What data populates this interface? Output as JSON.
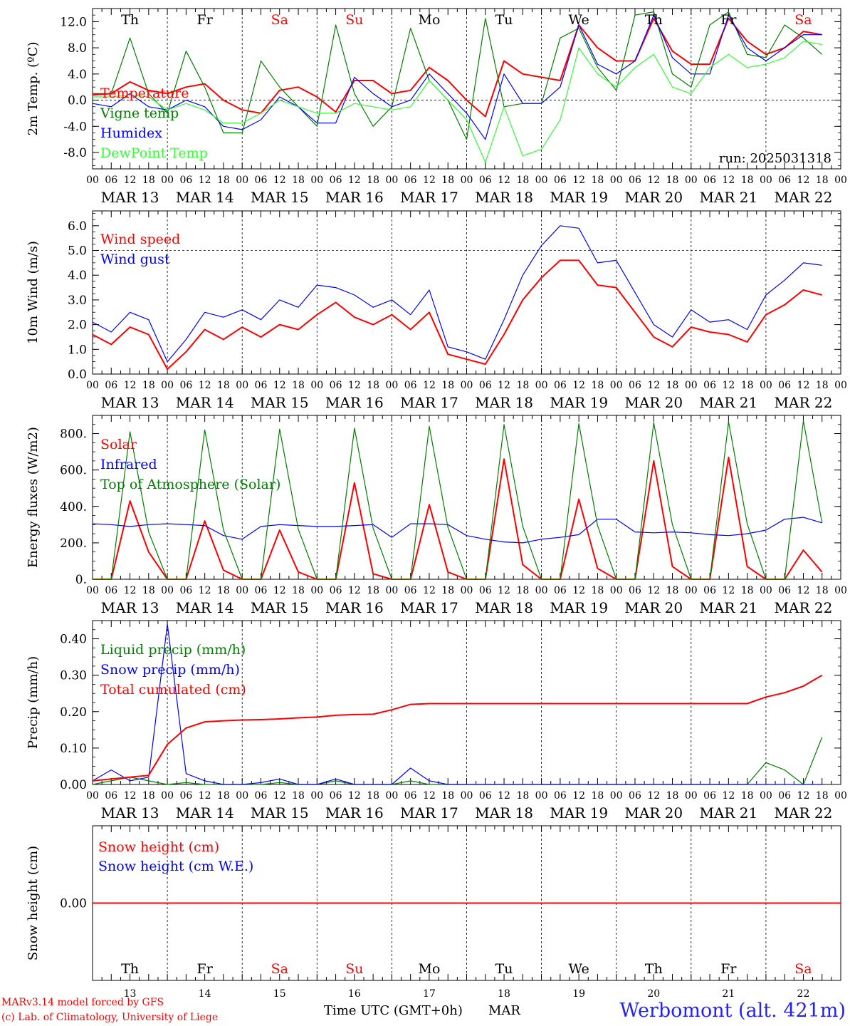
{
  "footer": {
    "model": "MARv3.14 model forced by GFS",
    "copyright": "(c) Lab. of Climatology, University of Liege",
    "time_axis": "Time UTC (GMT+0h)",
    "month": "MAR",
    "station": "Werbomont (alt. 421m)"
  },
  "colors": {
    "red": "#ff0000",
    "darkgreen": "#008000",
    "blue": "#0000ff",
    "lightgreen": "#33ff33",
    "weekend": "#ff0000",
    "station": "#2222ff"
  },
  "chart_data": [
    {
      "type": "line",
      "panel": "temperature",
      "ylabel": "2m Temp. (ºC)",
      "ylim": [
        -10.5,
        14
      ],
      "yticks": [
        -8.0,
        -4.0,
        0.0,
        4.0,
        8.0,
        12.0
      ],
      "ytick_labels": [
        "-8.0",
        "-4.0",
        "0.0",
        "4.0",
        "8.0",
        "12.0"
      ],
      "dashed_ref": 0.0,
      "annotation": "run: 2025031318",
      "day_labels": [
        "Th",
        "Fr",
        "Sa",
        "Su",
        "Mo",
        "Tu",
        "We",
        "Th",
        "Fr",
        "Sa"
      ],
      "x_hours": [
        0,
        6,
        12,
        18,
        24,
        30,
        36,
        42,
        48,
        54,
        60,
        66,
        72,
        78,
        84,
        90,
        96,
        102,
        108,
        114,
        120,
        126,
        132,
        138,
        144,
        150,
        156,
        162,
        168,
        174,
        180,
        186,
        192,
        198,
        204,
        210,
        216,
        222,
        228,
        234
      ],
      "series": [
        {
          "name": "Temperature",
          "color": "red",
          "values": [
            0.8,
            1.0,
            2.8,
            1.5,
            1.0,
            2.0,
            2.5,
            0.0,
            -1.5,
            -2.0,
            1.5,
            2.0,
            0.5,
            -1.8,
            3.0,
            3.0,
            1.0,
            1.5,
            5.0,
            3.0,
            0.0,
            -2.5,
            6.0,
            4.0,
            3.5,
            3.0,
            11.5,
            8.0,
            6.0,
            6.0,
            12.5,
            7.5,
            5.5,
            5.5,
            12.5,
            9.0,
            7.0,
            8.0,
            10.5,
            10.0
          ]
        },
        {
          "name": "Vigne temp",
          "color": "darkgreen",
          "values": [
            1.0,
            1.0,
            9.5,
            1.0,
            -2.0,
            7.5,
            2.0,
            -5.0,
            -5.0,
            6.0,
            2.0,
            -1.0,
            -4.0,
            11.5,
            1.0,
            -4.0,
            -1.0,
            11.0,
            3.0,
            0.0,
            -6.0,
            12.5,
            -1.0,
            -0.5,
            -0.5,
            9.5,
            11.0,
            5.0,
            1.5,
            13.0,
            13.5,
            4.0,
            2.0,
            11.5,
            13.5,
            7.0,
            6.5,
            11.5,
            9.5,
            7.0
          ]
        },
        {
          "name": "Humidex",
          "color": "blue",
          "values": [
            -0.5,
            -1.0,
            1.0,
            -1.0,
            -1.5,
            0.0,
            -1.0,
            -4.0,
            -4.5,
            -3.0,
            0.5,
            -1.0,
            -3.5,
            -3.5,
            3.5,
            1.0,
            -1.0,
            0.0,
            4.0,
            1.0,
            -2.0,
            -6.0,
            4.0,
            -0.5,
            -0.5,
            2.0,
            11.5,
            5.5,
            4.0,
            6.0,
            13.0,
            6.5,
            4.0,
            4.0,
            13.0,
            8.0,
            6.0,
            8.0,
            10.0,
            10.0
          ]
        },
        {
          "name": "DewPoint Temp",
          "color": "lightgreen",
          "values": [
            0.5,
            0.5,
            0.8,
            0.5,
            -1.5,
            -0.5,
            -1.5,
            -3.5,
            -3.5,
            -2.0,
            0.0,
            -1.0,
            -2.0,
            -2.0,
            -0.5,
            -1.0,
            -1.5,
            -1.0,
            3.0,
            0.0,
            -3.0,
            -9.5,
            -1.0,
            -8.5,
            -7.5,
            -3.0,
            8.0,
            4.0,
            2.0,
            5.0,
            7.0,
            2.0,
            1.0,
            5.0,
            7.0,
            5.0,
            5.5,
            6.5,
            9.0,
            8.5
          ]
        }
      ]
    },
    {
      "type": "line",
      "panel": "wind",
      "ylabel": "10m Wind (m/s)",
      "ylim": [
        0,
        6.6
      ],
      "yticks": [
        0.0,
        1.0,
        2.0,
        3.0,
        4.0,
        5.0,
        6.0
      ],
      "ytick_labels": [
        "0.0",
        "1.0",
        "2.0",
        "3.0",
        "4.0",
        "5.0",
        "6.0"
      ],
      "dashed_ref": 5.0,
      "x_hours": [
        0,
        6,
        12,
        18,
        24,
        30,
        36,
        42,
        48,
        54,
        60,
        66,
        72,
        78,
        84,
        90,
        96,
        102,
        108,
        114,
        120,
        126,
        132,
        138,
        144,
        150,
        156,
        162,
        168,
        174,
        180,
        186,
        192,
        198,
        204,
        210,
        216,
        222,
        228,
        234
      ],
      "series": [
        {
          "name": "Wind speed",
          "color": "red",
          "values": [
            1.6,
            1.2,
            1.9,
            1.6,
            0.2,
            0.9,
            1.8,
            1.4,
            1.9,
            1.5,
            2.0,
            1.8,
            2.4,
            2.9,
            2.3,
            2.0,
            2.4,
            1.8,
            2.5,
            0.8,
            0.6,
            0.4,
            1.6,
            3.0,
            3.9,
            4.6,
            4.6,
            3.6,
            3.5,
            2.5,
            1.5,
            1.1,
            1.9,
            1.7,
            1.6,
            1.3,
            2.4,
            2.8,
            3.4,
            3.2
          ]
        },
        {
          "name": "Wind gust",
          "color": "blue",
          "values": [
            2.1,
            1.7,
            2.5,
            2.2,
            0.5,
            1.4,
            2.5,
            2.3,
            2.6,
            2.2,
            3.0,
            2.7,
            3.6,
            3.5,
            3.2,
            2.7,
            3.0,
            2.4,
            3.4,
            1.1,
            0.9,
            0.6,
            2.2,
            4.0,
            5.2,
            6.0,
            5.9,
            4.5,
            4.6,
            3.3,
            2.0,
            1.5,
            2.6,
            2.1,
            2.2,
            1.8,
            3.2,
            3.8,
            4.5,
            4.4
          ]
        }
      ]
    },
    {
      "type": "line",
      "panel": "energy",
      "ylabel": "Energy fluxes (W/m2)",
      "ylim": [
        0,
        900
      ],
      "yticks": [
        0,
        200,
        400,
        600,
        800
      ],
      "ytick_labels": [
        "0.",
        "200.",
        "400.",
        "600.",
        "800."
      ],
      "x_hours": [
        0,
        6,
        12,
        18,
        24,
        30,
        36,
        42,
        48,
        54,
        60,
        66,
        72,
        78,
        84,
        90,
        96,
        102,
        108,
        114,
        120,
        126,
        132,
        138,
        144,
        150,
        156,
        162,
        168,
        174,
        180,
        186,
        192,
        198,
        204,
        210,
        216,
        222,
        228,
        234
      ],
      "series": [
        {
          "name": "Solar",
          "color": "red",
          "values": [
            0,
            0,
            430,
            150,
            0,
            0,
            320,
            50,
            0,
            0,
            270,
            40,
            0,
            0,
            530,
            30,
            0,
            0,
            410,
            40,
            0,
            0,
            660,
            80,
            0,
            0,
            440,
            60,
            0,
            0,
            650,
            70,
            0,
            0,
            670,
            70,
            0,
            0,
            160,
            40
          ]
        },
        {
          "name": "Infrared",
          "color": "blue",
          "values": [
            305,
            300,
            290,
            300,
            305,
            300,
            295,
            240,
            220,
            290,
            300,
            295,
            290,
            290,
            295,
            300,
            230,
            305,
            305,
            300,
            240,
            220,
            205,
            200,
            220,
            230,
            245,
            330,
            330,
            260,
            255,
            260,
            255,
            245,
            240,
            250,
            270,
            330,
            340,
            310
          ]
        },
        {
          "name": "Top of Atmosphere (Solar)",
          "color": "darkgreen",
          "values": [
            0,
            0,
            810,
            260,
            0,
            0,
            820,
            270,
            0,
            0,
            825,
            275,
            0,
            0,
            830,
            280,
            0,
            0,
            840,
            285,
            0,
            0,
            850,
            290,
            0,
            0,
            855,
            295,
            0,
            0,
            860,
            300,
            0,
            0,
            865,
            305,
            0,
            0,
            870,
            310
          ]
        }
      ]
    },
    {
      "type": "line",
      "panel": "precip",
      "ylabel": "Precip (mm/h)",
      "ylim": [
        0,
        0.45
      ],
      "yticks": [
        0.0,
        0.1,
        0.2,
        0.3,
        0.4
      ],
      "ytick_labels": [
        "0.00",
        "0.10",
        "0.20",
        "0.30",
        "0.40"
      ],
      "x_hours": [
        0,
        6,
        12,
        18,
        24,
        30,
        36,
        42,
        48,
        54,
        60,
        66,
        72,
        78,
        84,
        90,
        96,
        102,
        108,
        114,
        120,
        126,
        132,
        138,
        144,
        150,
        156,
        162,
        168,
        174,
        180,
        186,
        192,
        198,
        204,
        210,
        216,
        222,
        228,
        234
      ],
      "series": [
        {
          "name": "Liquid precip (mm/h)",
          "color": "darkgreen",
          "values": [
            0.0,
            0.01,
            0.02,
            0.01,
            0.0,
            0.005,
            0.0,
            0.0,
            0.0,
            0.0,
            0.005,
            0.0,
            0.0,
            0.01,
            0.0,
            0.0,
            0.0,
            0.01,
            0.0,
            0.0,
            0.0,
            0.0,
            0.0,
            0.0,
            0.0,
            0.0,
            0.0,
            0.0,
            0.0,
            0.0,
            0.0,
            0.0,
            0.0,
            0.0,
            0.0,
            0.0,
            0.06,
            0.04,
            0.0,
            0.13
          ]
        },
        {
          "name": "Snow precip (mm/h)",
          "color": "blue",
          "values": [
            0.01,
            0.04,
            0.01,
            0.02,
            0.44,
            0.03,
            0.01,
            0.0,
            0.0,
            0.005,
            0.015,
            0.0,
            0.0,
            0.015,
            0.0,
            0.0,
            0.0,
            0.045,
            0.01,
            0.0,
            0.0,
            0.0,
            0.0,
            0.0,
            0.0,
            0.0,
            0.0,
            0.0,
            0.0,
            0.0,
            0.0,
            0.0,
            0.0,
            0.0,
            0.0,
            0.0,
            0.0,
            0.0,
            0.0,
            0.0
          ]
        },
        {
          "name": "Total cumulated (cm)",
          "color": "red",
          "values": [
            0.01,
            0.015,
            0.02,
            0.025,
            0.11,
            0.155,
            0.172,
            0.175,
            0.177,
            0.178,
            0.18,
            0.183,
            0.185,
            0.19,
            0.192,
            0.193,
            0.205,
            0.22,
            0.222,
            0.222,
            0.222,
            0.222,
            0.222,
            0.222,
            0.222,
            0.222,
            0.222,
            0.222,
            0.222,
            0.222,
            0.222,
            0.222,
            0.222,
            0.222,
            0.222,
            0.222,
            0.24,
            0.252,
            0.27,
            0.3
          ]
        }
      ]
    },
    {
      "type": "line",
      "panel": "snow",
      "ylabel": "Snow height (cm)",
      "ylim": [
        -1,
        1
      ],
      "yticks": [
        0.0
      ],
      "ytick_labels": [
        "0.00"
      ],
      "day_labels": [
        "Th",
        "Fr",
        "Sa",
        "Su",
        "Mo",
        "Tu",
        "We",
        "Th",
        "Fr",
        "Sa"
      ],
      "day_numbers": [
        "13",
        "14",
        "15",
        "16",
        "17",
        "18",
        "19",
        "20",
        "21",
        "22"
      ],
      "x_hours": [
        0,
        240
      ],
      "series": [
        {
          "name": "Snow height (cm)",
          "color": "red",
          "values": [
            0.0,
            0.0
          ]
        },
        {
          "name": "Snow height (cm W.E.)",
          "color": "blue",
          "values": []
        }
      ]
    }
  ],
  "xaxis": {
    "hour_labels": [
      "00",
      "06",
      "12",
      "18"
    ],
    "end_label": "00",
    "date_labels": [
      "MAR 13",
      "MAR 14",
      "MAR 15",
      "MAR 16",
      "MAR 17",
      "MAR 18",
      "MAR 19",
      "MAR 20",
      "MAR 21",
      "MAR 22"
    ],
    "weekend_days": [
      "Sa",
      "Su"
    ]
  }
}
